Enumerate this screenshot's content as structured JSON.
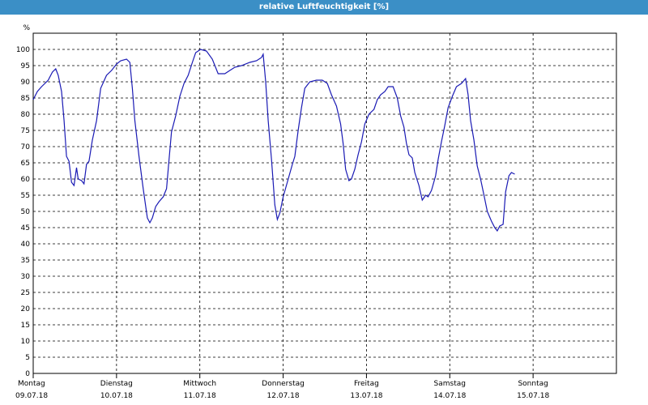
{
  "window": {
    "title": "relative Luftfeuchtigkeit [%]"
  },
  "chart_data": {
    "type": "line",
    "title": "relative Luftfeuchtigkeit [%]",
    "ylabel": "%",
    "ylim": [
      0,
      105
    ],
    "yticks": [
      0,
      5,
      10,
      15,
      20,
      25,
      30,
      35,
      40,
      45,
      50,
      55,
      60,
      65,
      70,
      75,
      80,
      85,
      90,
      95,
      100
    ],
    "grid": true,
    "legend": "none",
    "line_color": "#1a1ab4",
    "days": [
      {
        "weekday": "Montag",
        "date": "09.07.18"
      },
      {
        "weekday": "Dienstag",
        "date": "10.07.18"
      },
      {
        "weekday": "Mittwoch",
        "date": "11.07.18"
      },
      {
        "weekday": "Donnerstag",
        "date": "12.07.18"
      },
      {
        "weekday": "Freitag",
        "date": "13.07.18"
      },
      {
        "weekday": "Samstag",
        "date": "14.07.18"
      },
      {
        "weekday": "Sonntag",
        "date": "15.07.18"
      }
    ],
    "series": [
      {
        "x_unit": "days since 09.07.18 00:00",
        "points": [
          [
            0.0,
            84.5
          ],
          [
            0.05,
            87
          ],
          [
            0.1,
            88.5
          ],
          [
            0.18,
            90.5
          ],
          [
            0.23,
            93
          ],
          [
            0.27,
            94
          ],
          [
            0.3,
            92
          ],
          [
            0.34,
            87
          ],
          [
            0.37,
            78
          ],
          [
            0.4,
            67
          ],
          [
            0.43,
            65.5
          ],
          [
            0.46,
            59
          ],
          [
            0.49,
            58
          ],
          [
            0.52,
            63.5
          ],
          [
            0.54,
            60
          ],
          [
            0.58,
            59.5
          ],
          [
            0.61,
            58.5
          ],
          [
            0.64,
            64.5
          ],
          [
            0.67,
            65.5
          ],
          [
            0.71,
            72
          ],
          [
            0.76,
            78
          ],
          [
            0.81,
            88
          ],
          [
            0.88,
            92
          ],
          [
            0.94,
            93.5
          ],
          [
            1.0,
            95.5
          ],
          [
            1.05,
            96.5
          ],
          [
            1.12,
            97
          ],
          [
            1.16,
            96
          ],
          [
            1.19,
            88
          ],
          [
            1.22,
            78
          ],
          [
            1.27,
            67
          ],
          [
            1.32,
            57
          ],
          [
            1.37,
            48
          ],
          [
            1.4,
            46.5
          ],
          [
            1.43,
            48
          ],
          [
            1.47,
            51.5
          ],
          [
            1.51,
            53
          ],
          [
            1.56,
            54.5
          ],
          [
            1.6,
            57
          ],
          [
            1.63,
            66
          ],
          [
            1.66,
            74.5
          ],
          [
            1.71,
            79.5
          ],
          [
            1.76,
            85.5
          ],
          [
            1.81,
            89.5
          ],
          [
            1.86,
            92
          ],
          [
            1.91,
            96
          ],
          [
            1.95,
            99
          ],
          [
            2.01,
            100
          ],
          [
            2.08,
            99.5
          ],
          [
            2.15,
            97
          ],
          [
            2.22,
            92.5
          ],
          [
            2.3,
            92.5
          ],
          [
            2.36,
            93.5
          ],
          [
            2.42,
            94.5
          ],
          [
            2.5,
            95
          ],
          [
            2.6,
            96
          ],
          [
            2.68,
            96.5
          ],
          [
            2.74,
            97.5
          ],
          [
            2.76,
            98.5
          ],
          [
            2.79,
            90
          ],
          [
            2.82,
            78
          ],
          [
            2.86,
            66
          ],
          [
            2.9,
            52
          ],
          [
            2.93,
            47.5
          ],
          [
            2.96,
            49.5
          ],
          [
            3.0,
            54.5
          ],
          [
            3.05,
            59
          ],
          [
            3.11,
            64.5
          ],
          [
            3.14,
            67
          ],
          [
            3.18,
            75
          ],
          [
            3.22,
            82
          ],
          [
            3.26,
            88
          ],
          [
            3.32,
            90
          ],
          [
            3.4,
            90.5
          ],
          [
            3.47,
            90.5
          ],
          [
            3.53,
            89.5
          ],
          [
            3.58,
            86
          ],
          [
            3.64,
            82.5
          ],
          [
            3.69,
            77
          ],
          [
            3.72,
            71
          ],
          [
            3.75,
            63
          ],
          [
            3.79,
            59.5
          ],
          [
            3.82,
            60
          ],
          [
            3.86,
            63
          ],
          [
            3.9,
            67.5
          ],
          [
            3.94,
            71.5
          ],
          [
            3.98,
            77
          ],
          [
            4.03,
            80
          ],
          [
            4.09,
            81.5
          ],
          [
            4.13,
            84.5
          ],
          [
            4.17,
            86
          ],
          [
            4.22,
            87
          ],
          [
            4.26,
            88.5
          ],
          [
            4.32,
            88.5
          ],
          [
            4.37,
            85
          ],
          [
            4.41,
            79.5
          ],
          [
            4.45,
            76
          ],
          [
            4.48,
            71
          ],
          [
            4.51,
            67.5
          ],
          [
            4.55,
            66.5
          ],
          [
            4.58,
            62
          ],
          [
            4.63,
            58
          ],
          [
            4.67,
            53.5
          ],
          [
            4.71,
            55
          ],
          [
            4.74,
            54.5
          ],
          [
            4.78,
            56.5
          ],
          [
            4.83,
            61
          ],
          [
            4.86,
            66
          ],
          [
            4.9,
            71.5
          ],
          [
            4.94,
            76.5
          ],
          [
            4.98,
            82
          ],
          [
            5.03,
            85.5
          ],
          [
            5.08,
            88.5
          ],
          [
            5.14,
            89.5
          ],
          [
            5.19,
            91
          ],
          [
            5.22,
            86
          ],
          [
            5.25,
            78
          ],
          [
            5.29,
            72
          ],
          [
            5.33,
            64
          ],
          [
            5.37,
            60
          ],
          [
            5.41,
            55
          ],
          [
            5.45,
            50
          ],
          [
            5.5,
            47
          ],
          [
            5.54,
            45
          ],
          [
            5.57,
            44
          ],
          [
            5.6,
            45.5
          ],
          [
            5.64,
            46
          ],
          [
            5.67,
            56
          ],
          [
            5.71,
            61
          ],
          [
            5.74,
            62
          ],
          [
            5.78,
            61.5
          ]
        ]
      }
    ]
  }
}
